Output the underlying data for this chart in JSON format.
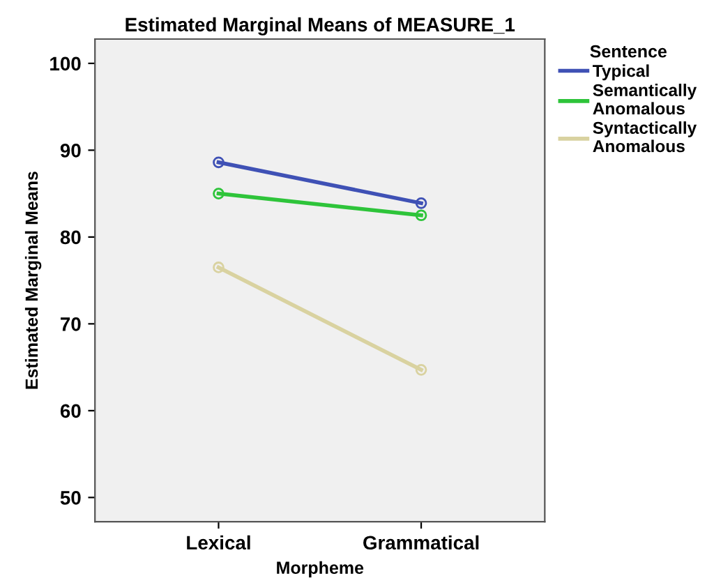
{
  "chart_data": {
    "type": "line",
    "title": "Estimated Marginal Means of MEASURE_1",
    "xlabel": "Morpheme",
    "ylabel": "Estimated Marginal Means",
    "legend_title": "Sentence",
    "categories": [
      "Lexical",
      "Grammatical"
    ],
    "series": [
      {
        "name": "Typical",
        "color": "#3f51b5",
        "values": [
          88.6,
          83.9
        ]
      },
      {
        "name": "Semantically\nAnomalous",
        "color": "#2ec43a",
        "values": [
          85.0,
          82.5
        ]
      },
      {
        "name": "Syntactically\nAnomalous",
        "color": "#d9d2a0",
        "values": [
          76.5,
          64.7
        ]
      }
    ],
    "ylim": [
      47.2,
      102.8
    ],
    "yticks": [
      50,
      60,
      70,
      80,
      90,
      100
    ],
    "grid": false,
    "legend": "right",
    "marker": "circle",
    "line_style": "solid"
  }
}
